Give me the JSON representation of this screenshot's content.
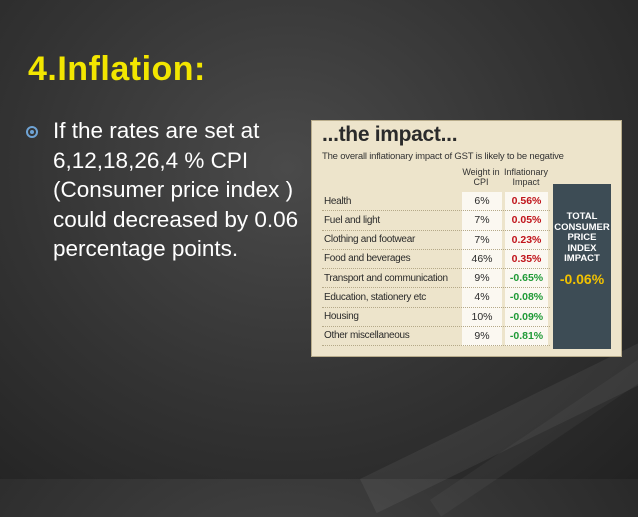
{
  "slide": {
    "title": "4.Inflation:",
    "bullet": "If the rates are set at 6,12,18,26,4 % CPI (Consumer price index ) could decreased by 0.06 percentage points."
  },
  "clipping": {
    "title": "...the impact...",
    "subtitle": "The overall inflationary impact of GST is likely to be negative",
    "col_weight": "Weight in CPI",
    "col_impact": "Inflationary Impact",
    "rows": [
      {
        "category": "Health",
        "weight": "6%",
        "impact": "0.56%",
        "sign": "pos"
      },
      {
        "category": "Fuel and light",
        "weight": "7%",
        "impact": "0.05%",
        "sign": "pos"
      },
      {
        "category": "Clothing and footwear",
        "weight": "7%",
        "impact": "0.23%",
        "sign": "pos"
      },
      {
        "category": "Food and beverages",
        "weight": "46%",
        "impact": "0.35%",
        "sign": "pos"
      },
      {
        "category": "Transport and communication",
        "weight": "9%",
        "impact": "-0.65%",
        "sign": "neg"
      },
      {
        "category": "Education, stationery etc",
        "weight": "4%",
        "impact": "-0.08%",
        "sign": "neg"
      },
      {
        "category": "Housing",
        "weight": "10%",
        "impact": "-0.09%",
        "sign": "neg"
      },
      {
        "category": "Other miscellaneous",
        "weight": "9%",
        "impact": "-0.81%",
        "sign": "neg"
      }
    ],
    "total_label": "TOTAL\nCONSUMER\nPRICE\nINDEX\nIMPACT",
    "total_value": "-0.06%"
  },
  "colors": {
    "title": "#f2e600",
    "positive": "#c0141b",
    "negative": "#1f9a36",
    "panel": "#3d4c55"
  }
}
